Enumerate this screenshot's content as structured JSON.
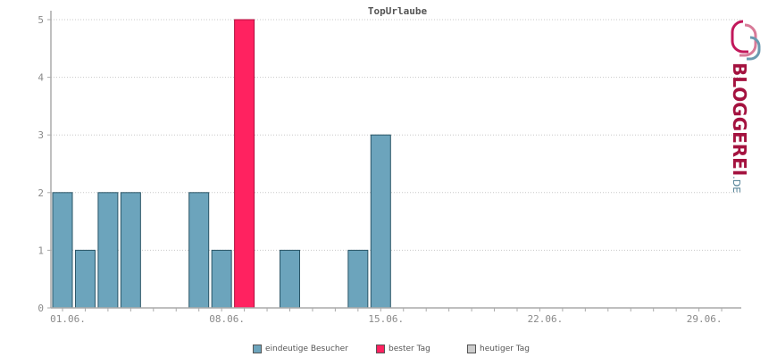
{
  "chart_data": {
    "type": "bar",
    "title": "TopUrlaube",
    "categories": [
      "01.06.",
      "02.06.",
      "03.06.",
      "04.06.",
      "05.06.",
      "06.06.",
      "07.06.",
      "08.06.",
      "09.06.",
      "10.06.",
      "11.06.",
      "12.06.",
      "13.06.",
      "14.06.",
      "15.06.",
      "16.06.",
      "17.06.",
      "18.06.",
      "19.06.",
      "20.06.",
      "21.06.",
      "22.06.",
      "23.06.",
      "24.06.",
      "25.06.",
      "26.06.",
      "27.06.",
      "28.06.",
      "29.06.",
      "30.06."
    ],
    "values": [
      2,
      1,
      2,
      2,
      0,
      0,
      2,
      1,
      5,
      0,
      1,
      0,
      0,
      1,
      3,
      0,
      0,
      0,
      0,
      0,
      0,
      0,
      0,
      0,
      0,
      0,
      0,
      0,
      0,
      0
    ],
    "best_day_index": 8,
    "xtick_labels": [
      "01.06.",
      "08.06.",
      "15.06.",
      "22.06.",
      "29.06."
    ],
    "yticks": [
      0,
      1,
      2,
      3,
      4,
      5
    ],
    "ylim": [
      0,
      5
    ],
    "grid": true,
    "legend": [
      "eindeutige Besucher",
      "bester Tag",
      "heutiger Tag"
    ],
    "legend_position": "bottom",
    "colors": {
      "visitors": "#6ca4bc",
      "best": "#ff2260",
      "today": "#cccccc",
      "bar_stroke": "#2a5566",
      "axis": "#aaaaaa"
    }
  },
  "logo": {
    "main": "BLOGGEREI",
    "suffix": ".DE"
  }
}
